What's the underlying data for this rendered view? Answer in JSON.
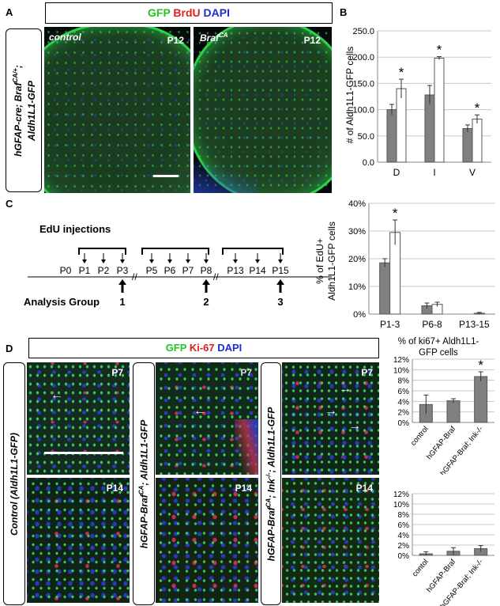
{
  "panelA": {
    "letter": "A",
    "stain": {
      "g": "GFP",
      "r": "BrdU",
      "b": "DAPI"
    },
    "genotype_prefix": "hGFAP-cre; Braf",
    "genotype_sup": "CA/+",
    "genotype_suffix": ";",
    "genotype_line2": "Aldh1L1-GFP",
    "img1": {
      "label": "control",
      "age": "P12"
    },
    "img2": {
      "label_main": "Braf",
      "label_sup": "CA",
      "age": "P12"
    }
  },
  "panelB": {
    "letter": "B",
    "chart_data": {
      "type": "bar",
      "categories": [
        "D",
        "I",
        "V"
      ],
      "series": [
        {
          "values": [
            100,
            128,
            64
          ],
          "errors": [
            10,
            18,
            7
          ],
          "color": "#808080"
        },
        {
          "values": [
            140,
            198,
            82
          ],
          "errors": [
            18,
            3,
            8
          ],
          "color": "#ffffff"
        }
      ],
      "significant": [
        true,
        true,
        true
      ],
      "ylabel": "# of Aldh1L1-GFP cells",
      "ylim": [
        0,
        250
      ],
      "yticks": [
        "0.0",
        "50.0",
        "100.0",
        "150.0",
        "200.0",
        "250.0"
      ],
      "grid": true
    }
  },
  "panelC": {
    "letter": "C",
    "title": "EdU injections",
    "timeline": {
      "group1": [
        "P0",
        "P1",
        "P2",
        "P3"
      ],
      "group2": [
        "P5",
        "P6",
        "P7",
        "P8"
      ],
      "group3": [
        "P13",
        "P14",
        "P15"
      ],
      "analysis_label": "Analysis Group",
      "group_numbers": [
        "1",
        "2",
        "3"
      ]
    },
    "chart_data": {
      "type": "bar",
      "categories": [
        "P1-3",
        "P6-8",
        "P13-15"
      ],
      "series": [
        {
          "values": [
            18.5,
            3.0,
            0.0
          ],
          "errors": [
            1.5,
            1.0,
            0.0
          ],
          "color": "#808080"
        },
        {
          "values": [
            29.5,
            3.5,
            0.3
          ],
          "errors": [
            4.5,
            0.8,
            0.3
          ],
          "color": "#ffffff"
        }
      ],
      "significant": [
        true,
        false,
        false
      ],
      "ylabel_line1": "% of EdU+",
      "ylabel_line2": "Aldh1L1-GFP cells",
      "ylim": [
        0,
        40
      ],
      "yticks": [
        "0%",
        "10%",
        "20%",
        "30%",
        "40%"
      ],
      "grid": true
    }
  },
  "panelD": {
    "letter": "D",
    "stain": {
      "g": "GFP",
      "r": "Ki-67",
      "b": "DAPI"
    },
    "col1_label": "Control (Aldh1L1-GFP)",
    "col2": {
      "prefix": "hGFAP-Braf",
      "sup": "CA",
      "suffix": "; Aldh1L1-GFP"
    },
    "col3": {
      "prefix": "hGFAP-Braf",
      "sup1": "CA",
      "mid": "; Ink",
      "sup2": "-/-",
      "suffix": "; Aldh1L1-GFP"
    },
    "ages": [
      "P7",
      "P14"
    ],
    "chart_title_line1": "% of ki67+ Aldh1L1-",
    "chart_title_line2": "GFP cells",
    "chart_data": [
      {
        "type": "bar",
        "categories": [
          "control",
          "hGFAP-Braf",
          "hGFAP-Braf; Ink-/-"
        ],
        "values": [
          3.4,
          4.1,
          8.7
        ],
        "errors": [
          1.8,
          0.4,
          0.9
        ],
        "significant": [
          false,
          false,
          true
        ],
        "ylim": [
          0,
          12
        ],
        "yticks": [
          "0%",
          "2%",
          "4%",
          "6%",
          "8%",
          "10%",
          "12%"
        ],
        "grid": true,
        "color": "#808080"
      },
      {
        "type": "bar",
        "categories": [
          "contol",
          "hGFAP-Braf",
          "hGFAP-Braf; Ink-/-"
        ],
        "values": [
          0.3,
          0.8,
          1.3
        ],
        "errors": [
          0.4,
          0.7,
          0.6
        ],
        "significant": [
          false,
          false,
          false
        ],
        "ylim": [
          0,
          12
        ],
        "yticks": [
          "0%",
          "2%",
          "4%",
          "6%",
          "8%",
          "10%",
          "12%"
        ],
        "grid": true,
        "color": "#808080"
      }
    ]
  }
}
